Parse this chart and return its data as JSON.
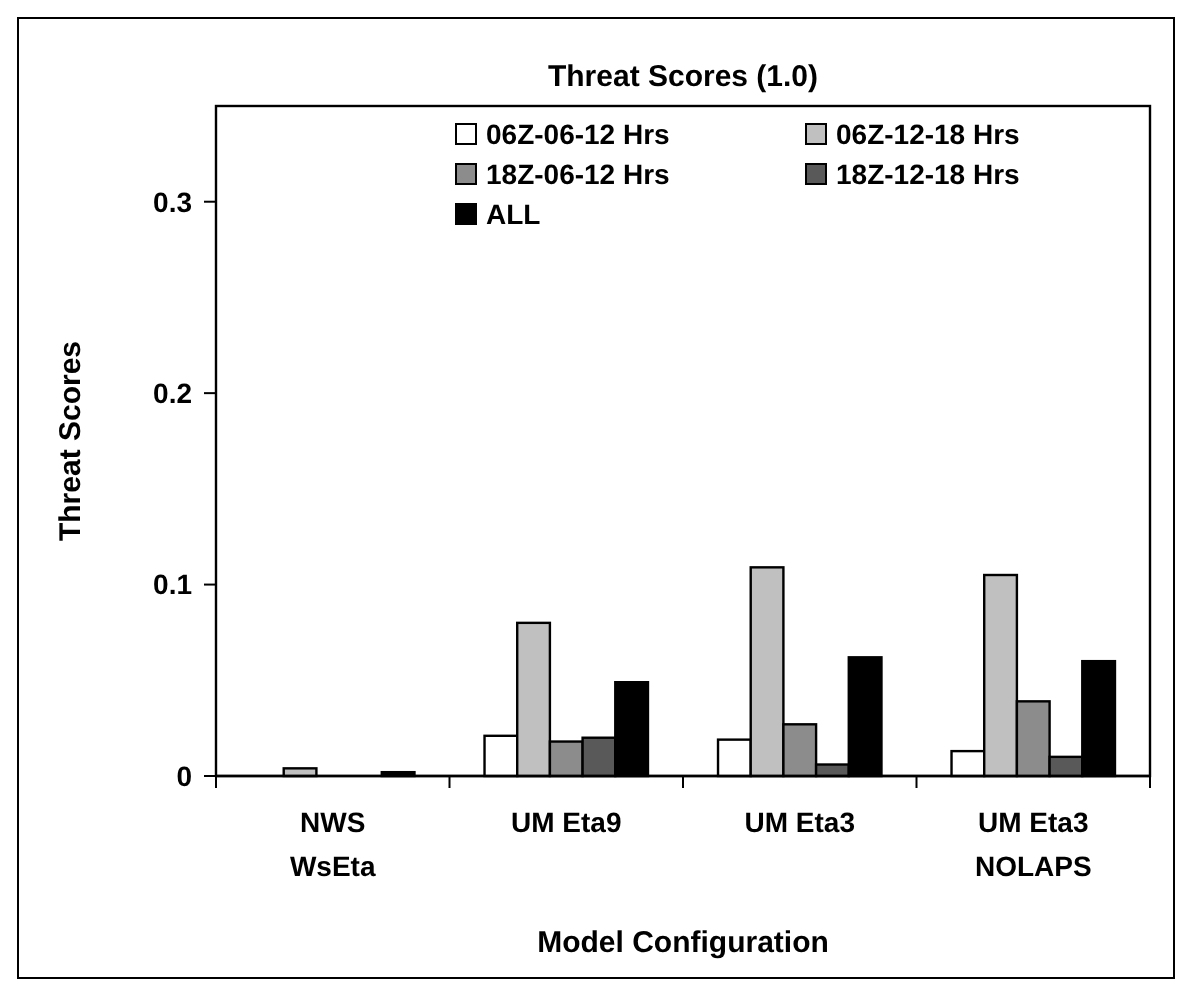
{
  "chart_data": {
    "type": "bar",
    "title": "Threat Scores (1.0)",
    "xlabel": "Model Configuration",
    "ylabel": "Threat Scores",
    "categories": [
      "NWS\nWsEta",
      "UM Eta9",
      "UM Eta3",
      "UM Eta3\nNOLAPS"
    ],
    "series": [
      {
        "name": "06Z-06-12 Hrs",
        "color": "#ffffff",
        "values": [
          0,
          0.021,
          0.019,
          0.013
        ]
      },
      {
        "name": "06Z-12-18 Hrs",
        "color": "#c0c0c0",
        "values": [
          0.004,
          0.08,
          0.109,
          0.105
        ]
      },
      {
        "name": "18Z-06-12 Hrs",
        "color": "#8c8c8c",
        "values": [
          0,
          0.018,
          0.027,
          0.039
        ]
      },
      {
        "name": "18Z-12-18 Hrs",
        "color": "#595959",
        "values": [
          0,
          0.02,
          0.006,
          0.01
        ]
      },
      {
        "name": "ALL",
        "color": "#000000",
        "values": [
          0.002,
          0.049,
          0.062,
          0.06
        ]
      }
    ],
    "ylim": [
      0,
      0.35
    ],
    "yticks": [
      0,
      0.1,
      0.2,
      0.3
    ],
    "grid": false,
    "legend": "top right"
  }
}
